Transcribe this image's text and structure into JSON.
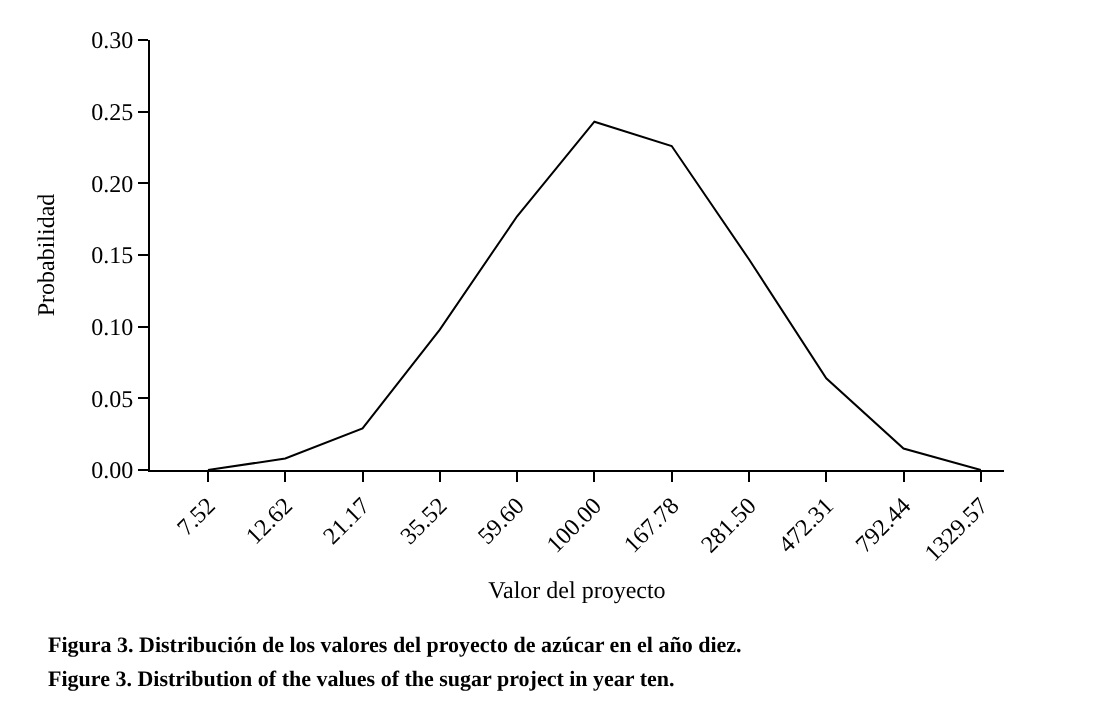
{
  "chart_data": {
    "type": "line",
    "xlabel": "Valor del proyecto",
    "ylabel": "Probabilidad",
    "categories": [
      "7.52",
      "12.62",
      "21.17",
      "35.52",
      "59.60",
      "100.00",
      "167.78",
      "281.50",
      "472.31",
      "792.44",
      "1329.57"
    ],
    "series": [
      {
        "color": "#000000",
        "values": [
          0.0,
          0.008,
          0.029,
          0.098,
          0.177,
          0.243,
          0.226,
          0.147,
          0.064,
          0.015,
          0.0
        ]
      }
    ],
    "ylim": [
      0,
      0.3
    ],
    "yticks": [
      {
        "value": 0,
        "label": "0.00"
      },
      {
        "value": 0.05,
        "label": "0.05"
      },
      {
        "value": 0.1,
        "label": "0.10"
      },
      {
        "value": 0.15,
        "label": "0.15"
      },
      {
        "value": 0.2,
        "label": "0.20"
      },
      {
        "value": 0.25,
        "label": "0.25"
      },
      {
        "value": 0.3,
        "label": "0.30"
      }
    ],
    "marker": "none",
    "line_style": "solid",
    "annotations": [
      "Figura 3. Distribución de los valores del proyecto de azúcar en el año diez.",
      "Figure 3. Distribution of the values of the sugar project in year ten."
    ]
  }
}
